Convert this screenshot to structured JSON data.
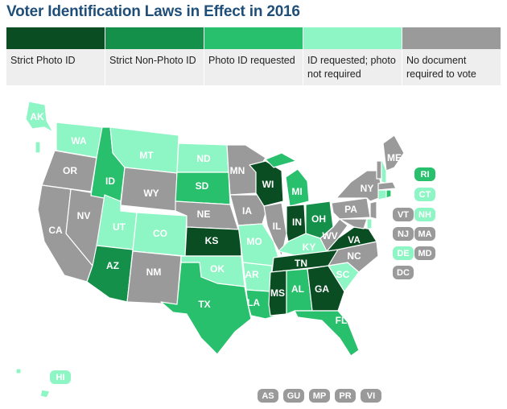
{
  "title": "Voter Identification Laws in Effect in 2016",
  "colors": {
    "strict_photo": "#0b4d23",
    "strict_non_photo": "#15904a",
    "photo_requested": "#28c06c",
    "id_requested": "#8ef5c4",
    "no_document": "#9a9a9a"
  },
  "legend": [
    {
      "key": "strict_photo",
      "label": "Strict Photo ID"
    },
    {
      "key": "strict_non_photo",
      "label": "Strict Non-Photo ID"
    },
    {
      "key": "photo_requested",
      "label": "Photo ID requested"
    },
    {
      "key": "id_requested",
      "label": "ID requested; photo not required"
    },
    {
      "key": "no_document",
      "label": "No document required to vote"
    }
  ],
  "states": {
    "WA": "id_requested",
    "OR": "no_document",
    "CA": "no_document",
    "NV": "no_document",
    "ID": "photo_requested",
    "MT": "id_requested",
    "WY": "no_document",
    "UT": "id_requested",
    "AZ": "strict_non_photo",
    "CO": "id_requested",
    "NM": "no_document",
    "ND": "id_requested",
    "SD": "photo_requested",
    "NE": "no_document",
    "KS": "strict_photo",
    "OK": "id_requested",
    "TX": "photo_requested",
    "MN": "no_document",
    "IA": "no_document",
    "MO": "id_requested",
    "AR": "id_requested",
    "LA": "photo_requested",
    "WI": "strict_photo",
    "IL": "no_document",
    "MI": "photo_requested",
    "IN": "strict_photo",
    "OH": "strict_non_photo",
    "KY": "id_requested",
    "TN": "strict_photo",
    "MS": "strict_photo",
    "AL": "photo_requested",
    "GA": "strict_photo",
    "FL": "photo_requested",
    "SC": "id_requested",
    "NC": "no_document",
    "VA": "strict_photo",
    "WV": "no_document",
    "PA": "no_document",
    "NY": "no_document",
    "ME": "no_document",
    "AK": "id_requested",
    "HI": "id_requested"
  },
  "small_states": [
    {
      "abbr": "RI",
      "key": "photo_requested"
    },
    {
      "abbr": "CT",
      "key": "id_requested"
    },
    {
      "abbr": "VT",
      "key": "no_document"
    },
    {
      "abbr": "NH",
      "key": "id_requested"
    },
    {
      "abbr": "NJ",
      "key": "no_document"
    },
    {
      "abbr": "MA",
      "key": "no_document"
    },
    {
      "abbr": "DE",
      "key": "id_requested"
    },
    {
      "abbr": "MD",
      "key": "no_document"
    },
    {
      "abbr": "DC",
      "key": "no_document"
    }
  ],
  "territories": [
    {
      "abbr": "AS",
      "key": "no_document"
    },
    {
      "abbr": "GU",
      "key": "no_document"
    },
    {
      "abbr": "MP",
      "key": "no_document"
    },
    {
      "abbr": "PR",
      "key": "no_document"
    },
    {
      "abbr": "VI",
      "key": "no_document"
    }
  ]
}
